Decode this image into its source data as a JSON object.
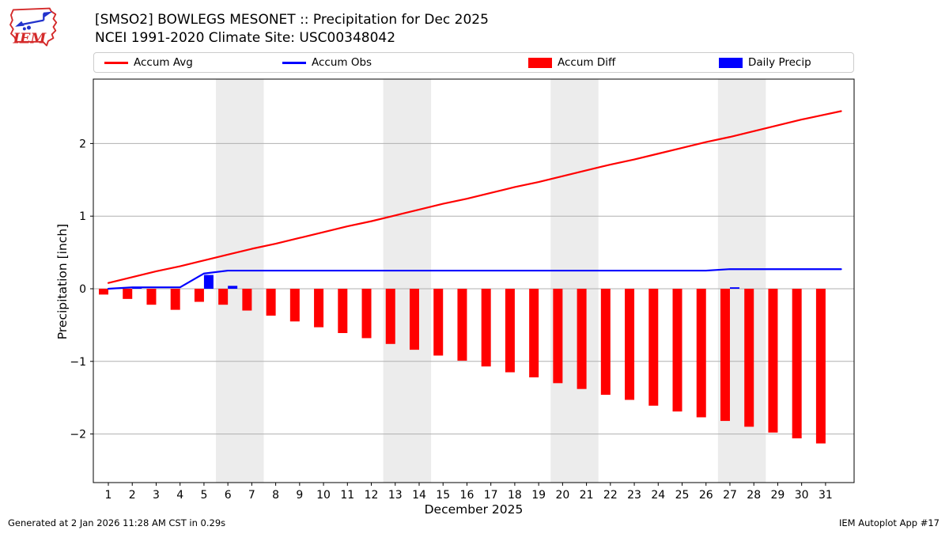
{
  "header": {
    "title": "[SMSO2] BOWLEGS MESONET :: Precipitation for Dec 2025",
    "subtitle": "NCEI 1991-2020 Climate Site: USC00348042",
    "logo_text": "IEM"
  },
  "legend": {
    "items": [
      {
        "label": "Accum Avg",
        "swatch": "line",
        "color": "#ff0000"
      },
      {
        "label": "Accum Obs",
        "swatch": "line",
        "color": "#0000ff"
      },
      {
        "label": "Accum Diff",
        "swatch": "rect",
        "color": "#ff0000"
      },
      {
        "label": "Daily Precip",
        "swatch": "rect",
        "color": "#0000ff"
      }
    ]
  },
  "chart_data": {
    "type": "bar",
    "title": "[SMSO2] BOWLEGS MESONET :: Precipitation for Dec 2025",
    "subtitle": "NCEI 1991-2020 Climate Site: USC00348042",
    "xlabel": "December 2025",
    "ylabel": "Precipitation [inch]",
    "x": [
      1,
      2,
      3,
      4,
      5,
      6,
      7,
      8,
      9,
      10,
      11,
      12,
      13,
      14,
      15,
      16,
      17,
      18,
      19,
      20,
      21,
      22,
      23,
      24,
      25,
      26,
      27,
      28,
      29,
      30,
      31
    ],
    "ylim": [
      -2.67,
      2.89
    ],
    "yticks": [
      {
        "v": -2,
        "label": "−2"
      },
      {
        "v": -1,
        "label": "−1"
      },
      {
        "v": 0,
        "label": "0"
      },
      {
        "v": 1,
        "label": "1"
      },
      {
        "v": 2,
        "label": "2"
      }
    ],
    "grid": true,
    "legend_position": "top",
    "weekend_bands": [
      [
        5.5,
        7.5
      ],
      [
        12.5,
        14.5
      ],
      [
        19.5,
        21.5
      ],
      [
        26.5,
        28.5
      ]
    ],
    "series": [
      {
        "name": "Accum Avg",
        "kind": "line",
        "color": "#ff0000",
        "extend": true,
        "values": [
          0.08,
          0.16,
          0.24,
          0.31,
          0.39,
          0.47,
          0.55,
          0.62,
          0.7,
          0.78,
          0.86,
          0.93,
          1.01,
          1.09,
          1.17,
          1.24,
          1.32,
          1.4,
          1.47,
          1.55,
          1.63,
          1.71,
          1.78,
          1.86,
          1.94,
          2.02,
          2.09,
          2.17,
          2.25,
          2.33,
          2.4
        ]
      },
      {
        "name": "Accum Obs",
        "kind": "line",
        "color": "#0000ff",
        "extend": true,
        "values": [
          0.0,
          0.02,
          0.02,
          0.02,
          0.21,
          0.25,
          0.25,
          0.25,
          0.25,
          0.25,
          0.25,
          0.25,
          0.25,
          0.25,
          0.25,
          0.25,
          0.25,
          0.25,
          0.25,
          0.25,
          0.25,
          0.25,
          0.25,
          0.25,
          0.25,
          0.25,
          0.27,
          0.27,
          0.27,
          0.27,
          0.27
        ]
      },
      {
        "name": "Accum Diff",
        "kind": "bar",
        "color": "#ff0000",
        "values": [
          -0.08,
          -0.14,
          -0.22,
          -0.29,
          -0.18,
          -0.22,
          -0.3,
          -0.37,
          -0.45,
          -0.53,
          -0.61,
          -0.68,
          -0.76,
          -0.84,
          -0.92,
          -0.99,
          -1.07,
          -1.15,
          -1.22,
          -1.3,
          -1.38,
          -1.46,
          -1.53,
          -1.61,
          -1.69,
          -1.77,
          -1.82,
          -1.9,
          -1.98,
          -2.06,
          -2.13
        ]
      },
      {
        "name": "Daily Precip",
        "kind": "bar",
        "color": "#0000ff",
        "values": [
          0,
          0.02,
          0,
          0,
          0.19,
          0.04,
          0,
          0,
          0,
          0,
          0,
          0,
          0,
          0,
          0,
          0,
          0,
          0,
          0,
          0,
          0,
          0,
          0,
          0,
          0,
          0,
          0.02,
          0,
          0,
          0,
          0
        ]
      }
    ]
  },
  "footer": {
    "left": "Generated at 2 Jan 2026 11:28 AM CST in 0.29s",
    "right": "IEM Autoplot App #17"
  }
}
